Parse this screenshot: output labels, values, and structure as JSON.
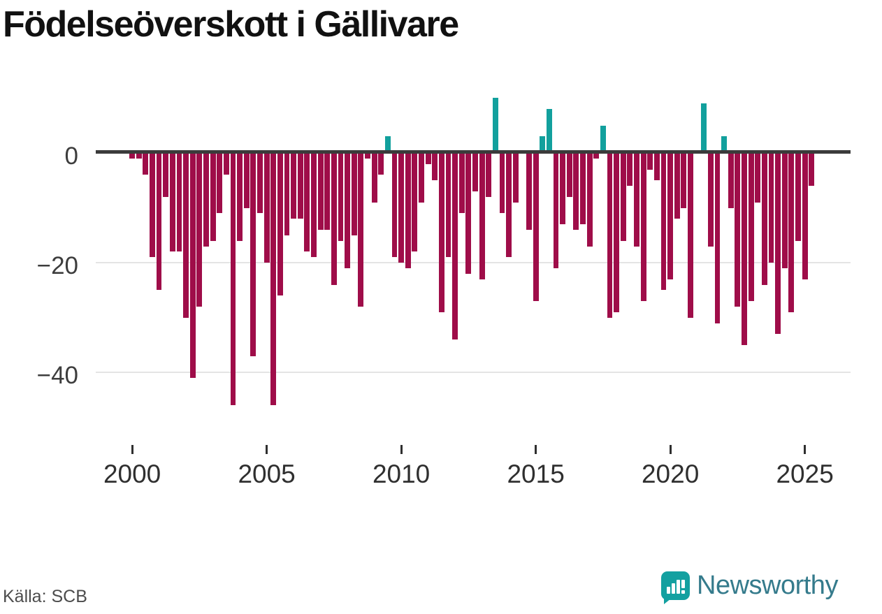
{
  "title": "Födelseöverskott i Gällivare",
  "source": "Källa: SCB",
  "brand": {
    "name": "Newsworthy",
    "icon": "newsworthy-bars-exclamation-icon",
    "icon_color": "#13a0a0",
    "text_color": "#357b8c"
  },
  "chart_data": {
    "type": "bar",
    "title": "Födelseöverskott i Gällivare",
    "xlabel": "",
    "ylabel": "",
    "start_year": 2000,
    "start_quarter": 1,
    "frequency": "quarterly",
    "values": [
      -1,
      -1,
      -4,
      -19,
      -25,
      -8,
      -18,
      -18,
      -30,
      -41,
      -28,
      -17,
      -16,
      -11,
      -4,
      -46,
      -16,
      -10,
      -37,
      -11,
      -20,
      -46,
      -26,
      -15,
      -12,
      -12,
      -18,
      -19,
      -14,
      -14,
      -24,
      -16,
      -21,
      -15,
      -28,
      -1,
      -9,
      -4,
      3,
      -19,
      -20,
      -21,
      -18,
      -9,
      -2,
      -5,
      -29,
      -19,
      -34,
      -11,
      -22,
      -7,
      -23,
      -8,
      10,
      -11,
      -19,
      -9,
      0,
      -14,
      -27,
      3,
      8,
      -21,
      -13,
      -8,
      -14,
      -13,
      -17,
      -1,
      5,
      -30,
      -29,
      -16,
      -6,
      -17,
      -27,
      -3,
      -5,
      -25,
      -23,
      -12,
      -10,
      -30,
      0,
      9,
      -17,
      -31,
      3,
      -10,
      -28,
      -35,
      -27,
      -9,
      -24,
      -20,
      -33,
      -21,
      -29,
      -16,
      -23,
      -6
    ],
    "positive_color": "#12a09d",
    "negative_color": "#9f0d49",
    "y_ticks": [
      "0",
      "−20",
      "−40"
    ],
    "y_tick_values": [
      0,
      -20,
      -40
    ],
    "x_ticks": [
      "2000",
      "2005",
      "2010",
      "2015",
      "2020",
      "2025"
    ],
    "x_tick_years": [
      2000,
      2005,
      2010,
      2015,
      2020,
      2025
    ],
    "ylim": [
      -48,
      11
    ],
    "grid": "horizontal",
    "legend": "none",
    "axis_color": "#3b3b3b",
    "grid_color": "#e4e4e4"
  }
}
